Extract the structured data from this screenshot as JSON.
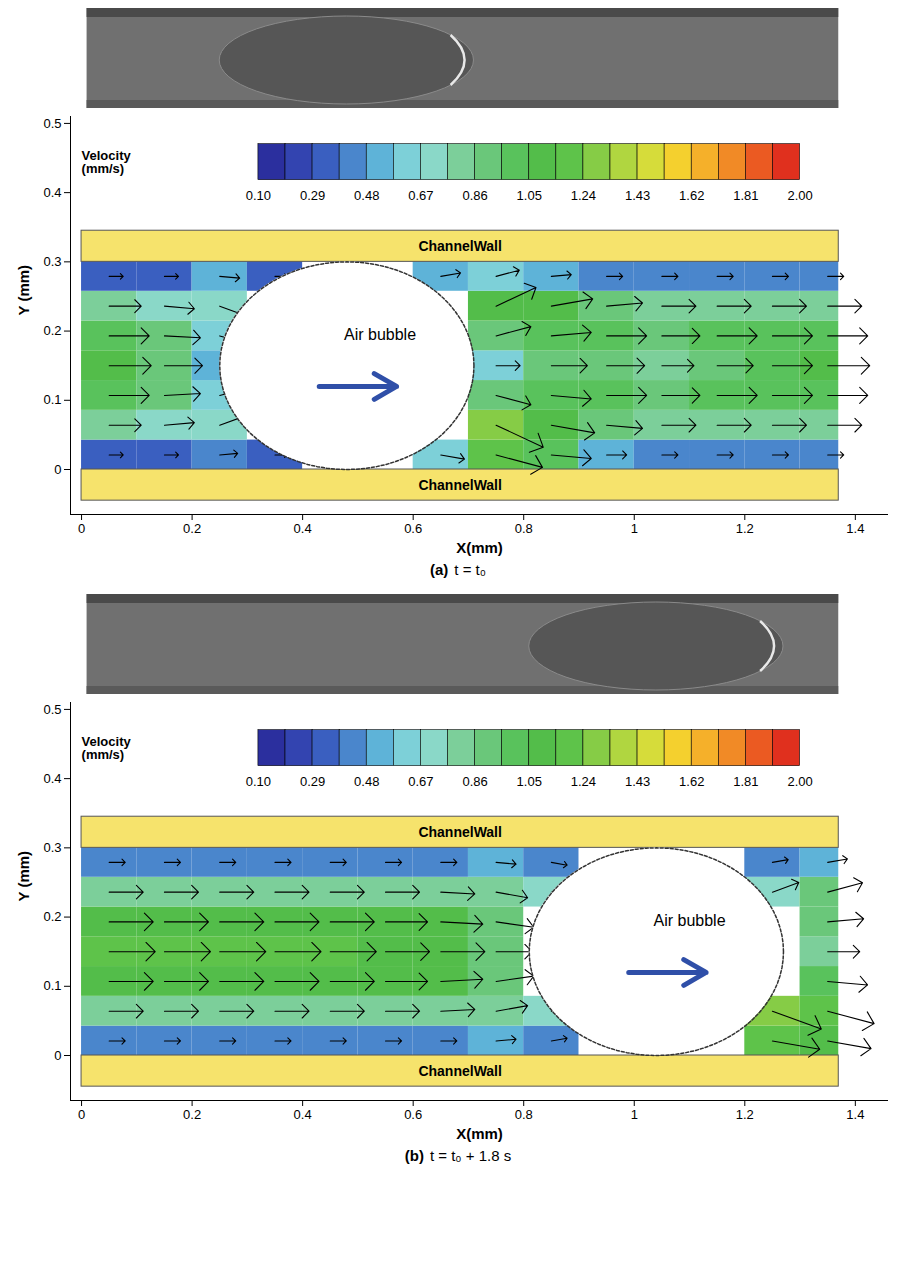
{
  "chart_data": [
    {
      "type": "vector_field",
      "panel": "(a)",
      "caption": "t = t₀",
      "x_label": "X(mm)",
      "y_label": "Y (mm)",
      "xlim": [
        -0.02,
        1.46
      ],
      "ylim": [
        -0.065,
        0.51
      ],
      "xticks": [
        0,
        0.2,
        0.4,
        0.6,
        0.8,
        1,
        1.2,
        1.4
      ],
      "yticks": [
        0,
        0.1,
        0.2,
        0.3,
        0.4,
        0.5
      ],
      "channel": {
        "x": [
          0,
          1.37
        ],
        "y": [
          0,
          0.3
        ]
      },
      "bubble": {
        "cx": 0.48,
        "cy": 0.15,
        "rx": 0.23,
        "ry": 0.15
      },
      "annotations": {
        "wall": "ChannelWall",
        "bubble": "Air bubble"
      },
      "colorbar": {
        "title": "Velocity (mm/s)",
        "range": [
          0.1,
          2.0
        ],
        "ticks": [
          {
            "value": 0.1,
            "label": "0.10"
          },
          0.29,
          0.48,
          0.67,
          0.86,
          1.05,
          1.24,
          1.43,
          1.62,
          1.81,
          {
            "value": 2.0,
            "label": "2.00"
          }
        ],
        "colors": [
          "#2b2f9e",
          "#3344b0",
          "#3a5fc0",
          "#4a86cc",
          "#5eb3d8",
          "#7dd0d8",
          "#8ad8c8",
          "#7ccf9a",
          "#6ac77a",
          "#59c25c",
          "#53bd4a",
          "#5ec34a",
          "#86cc46",
          "#b0d640",
          "#d6dc3a",
          "#f4d02e",
          "#f5b02a",
          "#f18a26",
          "#eb5a22",
          "#e0301e"
        ]
      },
      "vectors": {
        "x": [
          0.05,
          0.15,
          0.25,
          0.35,
          0.45,
          0.55,
          0.65,
          0.75,
          0.85,
          0.95,
          1.05,
          1.15,
          1.25,
          1.35
        ],
        "y": [
          0.021,
          0.064,
          0.107,
          0.15,
          0.193,
          0.236,
          0.279
        ],
        "speed": [
          [
            0.35,
            0.35,
            0.45,
            0.3,
            null,
            null,
            0.6,
            1.2,
            1.0,
            0.5,
            0.4,
            0.4,
            0.4,
            0.4
          ],
          [
            0.8,
            0.75,
            0.7,
            null,
            null,
            null,
            null,
            1.3,
            1.1,
            0.9,
            0.85,
            0.85,
            0.85,
            0.85
          ],
          [
            1.0,
            0.9,
            0.6,
            null,
            null,
            null,
            null,
            0.9,
            1.0,
            1.0,
            0.95,
            1.0,
            1.0,
            1.0
          ],
          [
            1.05,
            0.95,
            0.5,
            null,
            null,
            null,
            null,
            0.6,
            0.9,
            0.95,
            0.8,
            0.9,
            1.0,
            1.05
          ],
          [
            1.0,
            0.9,
            0.6,
            null,
            null,
            null,
            null,
            0.9,
            1.0,
            1.0,
            0.95,
            1.0,
            1.0,
            1.0
          ],
          [
            0.8,
            0.75,
            0.75,
            null,
            null,
            null,
            null,
            1.1,
            1.05,
            0.9,
            0.85,
            0.85,
            0.85,
            0.85
          ],
          [
            0.35,
            0.35,
            0.5,
            0.3,
            null,
            null,
            0.5,
            0.6,
            0.5,
            0.4,
            0.4,
            0.4,
            0.4,
            0.4
          ]
        ],
        "angle": [
          [
            0,
            0,
            5,
            0,
            null,
            null,
            -10,
            -15,
            -5,
            0,
            0,
            0,
            0,
            0
          ],
          [
            0,
            5,
            20,
            null,
            null,
            null,
            null,
            -25,
            -10,
            -5,
            0,
            0,
            0,
            0
          ],
          [
            0,
            3,
            15,
            null,
            null,
            null,
            null,
            -15,
            -5,
            0,
            0,
            0,
            0,
            0
          ],
          [
            0,
            0,
            0,
            null,
            null,
            null,
            null,
            0,
            0,
            0,
            0,
            0,
            0,
            0
          ],
          [
            0,
            -3,
            -15,
            null,
            null,
            null,
            null,
            15,
            5,
            0,
            0,
            0,
            0,
            0
          ],
          [
            0,
            -5,
            -20,
            null,
            null,
            null,
            null,
            25,
            10,
            5,
            0,
            0,
            0,
            0
          ],
          [
            0,
            0,
            -5,
            0,
            null,
            null,
            10,
            15,
            5,
            0,
            0,
            0,
            0,
            0
          ]
        ]
      }
    },
    {
      "type": "vector_field",
      "panel": "(b)",
      "caption": "t = t₀ + 1.8 s",
      "x_label": "X(mm)",
      "y_label": "Y (mm)",
      "xlim": [
        -0.02,
        1.46
      ],
      "ylim": [
        -0.065,
        0.51
      ],
      "xticks": [
        0,
        0.2,
        0.4,
        0.6,
        0.8,
        1,
        1.2,
        1.4
      ],
      "yticks": [
        0,
        0.1,
        0.2,
        0.3,
        0.4,
        0.5
      ],
      "channel": {
        "x": [
          0,
          1.37
        ],
        "y": [
          0,
          0.3
        ]
      },
      "bubble": {
        "cx": 1.04,
        "cy": 0.15,
        "rx": 0.23,
        "ry": 0.15
      },
      "annotations": {
        "wall": "ChannelWall",
        "bubble": "Air bubble"
      },
      "colorbar": {
        "title": "Velocity (mm/s)",
        "range": [
          0.1,
          2.0
        ],
        "ticks": [
          {
            "value": 0.1,
            "label": "0.10"
          },
          0.29,
          0.48,
          0.67,
          0.86,
          1.05,
          1.24,
          1.43,
          1.62,
          1.81,
          {
            "value": 2.0,
            "label": "2.00"
          }
        ],
        "colors": [
          "#2b2f9e",
          "#3344b0",
          "#3a5fc0",
          "#4a86cc",
          "#5eb3d8",
          "#7dd0d8",
          "#8ad8c8",
          "#7ccf9a",
          "#6ac77a",
          "#59c25c",
          "#53bd4a",
          "#5ec34a",
          "#86cc46",
          "#b0d640",
          "#d6dc3a",
          "#f4d02e",
          "#f5b02a",
          "#f18a26",
          "#eb5a22",
          "#e0301e"
        ]
      },
      "vectors": {
        "x": [
          0.05,
          0.15,
          0.25,
          0.35,
          0.45,
          0.55,
          0.65,
          0.75,
          0.85,
          0.95,
          1.05,
          1.15,
          1.25,
          1.35
        ],
        "y": [
          0.021,
          0.064,
          0.107,
          0.15,
          0.193,
          0.236,
          0.279
        ],
        "speed": [
          [
            0.4,
            0.4,
            0.4,
            0.4,
            0.4,
            0.4,
            0.4,
            0.5,
            0.4,
            null,
            null,
            null,
            1.2,
            1.1
          ],
          [
            0.85,
            0.85,
            0.85,
            0.85,
            0.85,
            0.85,
            0.85,
            0.8,
            0.7,
            null,
            null,
            null,
            1.3,
            1.2
          ],
          [
            1.1,
            1.1,
            1.1,
            1.1,
            1.1,
            1.05,
            1.05,
            0.95,
            null,
            null,
            null,
            null,
            null,
            1.0
          ],
          [
            1.15,
            1.15,
            1.15,
            1.15,
            1.15,
            1.1,
            1.1,
            0.9,
            null,
            null,
            null,
            null,
            null,
            0.8
          ],
          [
            1.1,
            1.1,
            1.1,
            1.1,
            1.1,
            1.05,
            1.05,
            0.95,
            null,
            null,
            null,
            null,
            null,
            0.9
          ],
          [
            0.85,
            0.85,
            0.85,
            0.85,
            0.85,
            0.85,
            0.85,
            0.8,
            0.7,
            null,
            null,
            null,
            0.7,
            0.9
          ],
          [
            0.4,
            0.4,
            0.4,
            0.4,
            0.4,
            0.4,
            0.4,
            0.5,
            0.4,
            null,
            null,
            null,
            0.4,
            0.5
          ]
        ],
        "angle": [
          [
            0,
            0,
            0,
            0,
            0,
            0,
            0,
            5,
            10,
            null,
            null,
            null,
            -10,
            -10
          ],
          [
            0,
            0,
            0,
            0,
            0,
            0,
            3,
            10,
            20,
            null,
            null,
            null,
            -20,
            -15
          ],
          [
            0,
            0,
            0,
            0,
            0,
            0,
            3,
            8,
            null,
            null,
            null,
            null,
            null,
            -5
          ],
          [
            0,
            0,
            0,
            0,
            0,
            0,
            0,
            0,
            null,
            null,
            null,
            null,
            null,
            0
          ],
          [
            0,
            0,
            0,
            0,
            0,
            0,
            -3,
            -8,
            null,
            null,
            null,
            null,
            null,
            5
          ],
          [
            0,
            0,
            0,
            0,
            0,
            0,
            -3,
            -10,
            -20,
            null,
            null,
            null,
            20,
            15
          ],
          [
            0,
            0,
            0,
            0,
            0,
            0,
            0,
            -5,
            -10,
            null,
            null,
            null,
            10,
            10
          ]
        ]
      }
    }
  ]
}
